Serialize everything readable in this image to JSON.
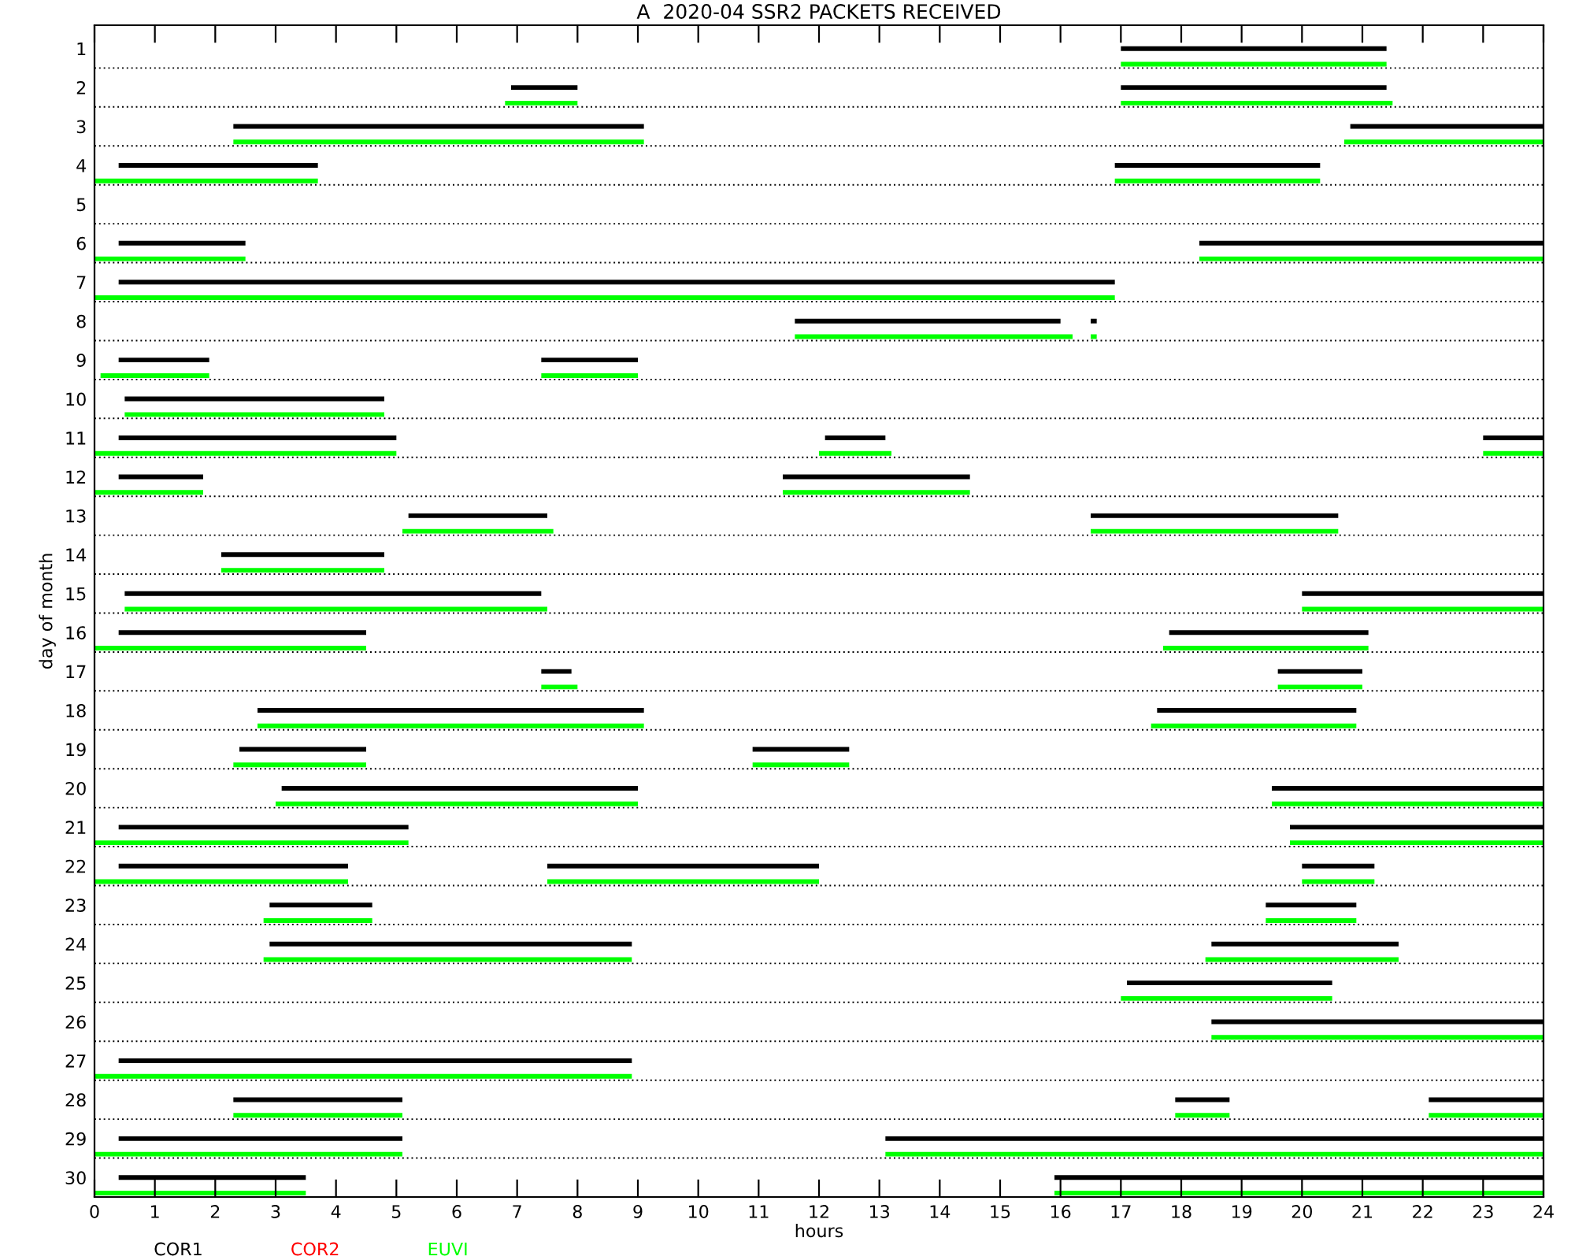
{
  "chart_data": {
    "type": "bar",
    "orientation": "horizontal",
    "title": "A  2020-04 SSR2 PACKETS RECEIVED",
    "xlabel": "hours",
    "ylabel": "day of month",
    "categories": [
      "1",
      "2",
      "3",
      "4",
      "5",
      "6",
      "7",
      "8",
      "9",
      "10",
      "11",
      "12",
      "13",
      "14",
      "15",
      "16",
      "17",
      "18",
      "19",
      "20",
      "21",
      "22",
      "23",
      "24",
      "25",
      "26",
      "27",
      "28",
      "29",
      "30"
    ],
    "xlim": [
      0,
      24
    ],
    "xticks": [
      0,
      1,
      2,
      3,
      4,
      5,
      6,
      7,
      8,
      9,
      10,
      11,
      12,
      13,
      14,
      15,
      16,
      17,
      18,
      19,
      20,
      21,
      22,
      23,
      24
    ],
    "grid": true,
    "legend": "bottom",
    "series": [
      {
        "name": "COR1",
        "color": "#000000",
        "base": [
          17.0,
          6.9,
          2.3,
          0.4,
          null,
          0.4,
          0.4,
          11.6,
          0.4,
          0.5,
          0.4,
          0.4,
          5.2,
          2.1,
          0.5,
          0.4,
          7.4,
          2.7,
          2.4,
          3.1,
          0.4,
          0.4,
          2.9,
          2.9,
          17.1,
          18.5,
          0.4,
          2.3,
          0.4,
          0.4
        ],
        "values": [
          4.4,
          1.1,
          6.8,
          3.3,
          null,
          2.1,
          16.5,
          4.4,
          1.5,
          4.3,
          4.6,
          1.4,
          2.3,
          2.7,
          6.9,
          4.1,
          0.5,
          6.4,
          2.1,
          5.9,
          4.8,
          3.8,
          1.7,
          6.0,
          3.4,
          5.5,
          8.5,
          2.8,
          4.7,
          3.1
        ]
      },
      {
        "color": "#000000",
        "base": [
          null,
          17.0,
          20.8,
          16.9,
          null,
          18.3,
          null,
          16.5,
          7.4,
          null,
          12.1,
          11.4,
          16.5,
          null,
          20.0,
          17.8,
          19.6,
          17.6,
          10.9,
          19.5,
          19.8,
          7.5,
          19.4,
          18.5,
          null,
          null,
          null,
          17.9,
          13.1,
          15.9
        ],
        "values": [
          null,
          4.4,
          3.2,
          3.4,
          null,
          5.7,
          null,
          0.1,
          1.6,
          null,
          1.0,
          3.1,
          4.1,
          null,
          4.0,
          3.3,
          1.4,
          3.3,
          1.6,
          4.5,
          4.2,
          4.5,
          1.5,
          3.1,
          null,
          null,
          null,
          0.9,
          10.9,
          8.1
        ]
      },
      {
        "color": "#000000",
        "base": [
          null,
          null,
          null,
          null,
          null,
          null,
          null,
          null,
          null,
          null,
          23.0,
          null,
          null,
          null,
          null,
          null,
          null,
          null,
          null,
          null,
          null,
          20.0,
          null,
          null,
          null,
          null,
          null,
          22.1,
          null,
          null
        ],
        "values": [
          null,
          null,
          null,
          null,
          null,
          null,
          null,
          null,
          null,
          null,
          1.0,
          null,
          null,
          null,
          null,
          null,
          null,
          null,
          null,
          null,
          null,
          1.2,
          null,
          null,
          null,
          null,
          null,
          1.9,
          null,
          null
        ]
      },
      {
        "name": "COR2",
        "color": "#ff0000",
        "base": [
          null,
          null,
          null,
          null,
          null,
          null,
          null,
          null,
          null,
          null,
          null,
          null,
          null,
          null,
          null,
          null,
          null,
          null,
          null,
          null,
          null,
          null,
          null,
          null,
          null,
          null,
          null,
          null,
          null,
          null
        ],
        "values": [
          null,
          null,
          null,
          null,
          null,
          null,
          null,
          null,
          null,
          null,
          null,
          null,
          null,
          null,
          null,
          null,
          null,
          null,
          null,
          null,
          null,
          null,
          null,
          null,
          null,
          null,
          null,
          null,
          null,
          null
        ]
      },
      {
        "name": "EUVI",
        "color": "#00ff00",
        "base": [
          17.0,
          6.8,
          2.3,
          0.0,
          null,
          0.0,
          0.0,
          11.6,
          0.1,
          0.5,
          0.0,
          0.0,
          5.1,
          2.1,
          0.5,
          0.0,
          7.4,
          2.7,
          2.3,
          3.0,
          0.0,
          0.0,
          2.8,
          2.8,
          17.0,
          18.5,
          0.0,
          2.3,
          0.0,
          0.0
        ],
        "values": [
          4.4,
          1.2,
          6.8,
          3.7,
          null,
          2.5,
          16.9,
          4.6,
          1.8,
          4.3,
          5.0,
          1.8,
          2.5,
          2.7,
          7.0,
          4.5,
          0.6,
          6.4,
          2.2,
          6.0,
          5.2,
          4.2,
          1.8,
          6.1,
          3.5,
          5.5,
          8.9,
          2.8,
          5.1,
          3.5
        ]
      },
      {
        "color": "#00ff00",
        "base": [
          null,
          17.0,
          20.7,
          16.9,
          null,
          18.3,
          null,
          16.5,
          7.4,
          null,
          12.0,
          11.4,
          16.5,
          null,
          20.0,
          17.7,
          19.6,
          17.5,
          10.9,
          19.5,
          19.8,
          7.5,
          19.4,
          18.4,
          null,
          null,
          null,
          17.9,
          13.1,
          15.9
        ],
        "values": [
          null,
          4.5,
          3.3,
          3.4,
          null,
          5.7,
          null,
          0.1,
          1.6,
          null,
          1.2,
          3.1,
          4.1,
          null,
          4.0,
          3.4,
          1.4,
          3.4,
          1.6,
          4.5,
          4.2,
          4.5,
          1.5,
          3.2,
          null,
          null,
          null,
          0.9,
          10.9,
          8.1
        ]
      },
      {
        "color": "#00ff00",
        "base": [
          null,
          null,
          null,
          null,
          null,
          null,
          null,
          null,
          null,
          null,
          23.0,
          null,
          null,
          null,
          null,
          null,
          null,
          null,
          null,
          null,
          null,
          20.0,
          null,
          null,
          null,
          null,
          null,
          22.1,
          null,
          null
        ],
        "values": [
          null,
          null,
          null,
          null,
          null,
          null,
          null,
          null,
          null,
          null,
          1.0,
          null,
          null,
          null,
          null,
          null,
          null,
          null,
          null,
          null,
          null,
          1.2,
          null,
          null,
          null,
          null,
          null,
          1.9,
          null,
          null
        ]
      }
    ]
  }
}
